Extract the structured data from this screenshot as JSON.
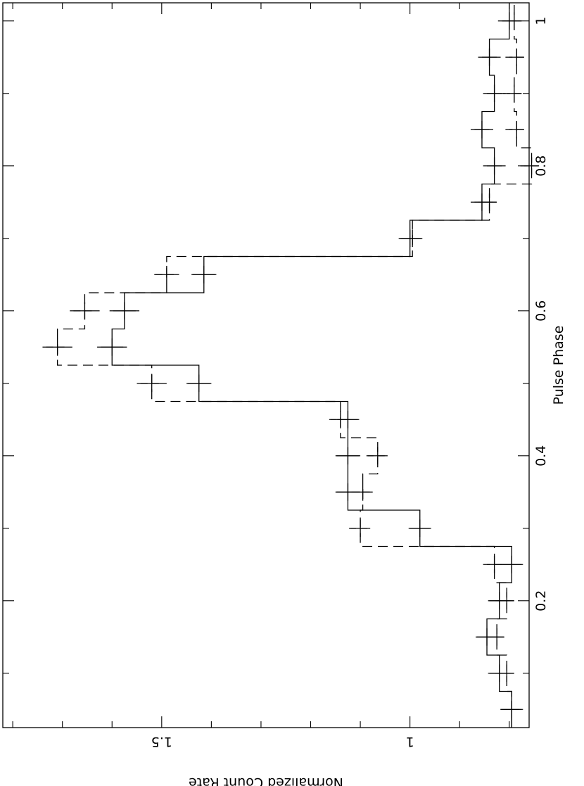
{
  "chart_data": {
    "type": "line",
    "title": "",
    "xlabel": "Pulse Phase",
    "ylabel": "Normalized Count Rate",
    "xlim": [
      0.025,
      1.025
    ],
    "ylim": [
      0.76,
      1.82
    ],
    "x_ticks": [
      {
        "value": 0.2,
        "label": "0.2"
      },
      {
        "value": 0.4,
        "label": "0.4"
      },
      {
        "value": 0.6,
        "label": "0.6"
      },
      {
        "value": 0.8,
        "label": "0.8"
      },
      {
        "value": 1.0,
        "label": "1"
      }
    ],
    "y_ticks": [
      {
        "value": 1.0,
        "label": "1"
      },
      {
        "value": 1.5,
        "label": "1.5"
      }
    ],
    "orientation": "rotated 90 degrees clockwise",
    "grid": false,
    "legend": "none",
    "bin_width": 0.05,
    "x": [
      0.05,
      0.1,
      0.15,
      0.2,
      0.25,
      0.3,
      0.35,
      0.4,
      0.45,
      0.5,
      0.55,
      0.6,
      0.65,
      0.7,
      0.75,
      0.8,
      0.85,
      0.9,
      0.95,
      1.0
    ],
    "series": [
      {
        "style": "solid",
        "values": [
          0.795,
          0.82,
          0.845,
          0.82,
          0.795,
          0.98,
          1.125,
          1.125,
          1.125,
          1.425,
          1.6,
          1.575,
          1.415,
          1.0,
          0.855,
          0.83,
          0.855,
          0.83,
          0.84,
          0.8
        ],
        "errors": [
          0.02,
          0.02,
          0.02,
          0.02,
          0.02,
          0.02,
          0.025,
          0.025,
          0.02,
          0.025,
          0.03,
          0.03,
          0.025,
          0.02,
          0.015,
          0.015,
          0.015,
          0.015,
          0.015,
          0.015
        ]
      },
      {
        "style": "dashed",
        "values": [
          0.795,
          0.805,
          0.825,
          0.805,
          0.83,
          1.1,
          1.095,
          1.065,
          1.14,
          1.52,
          1.71,
          1.655,
          1.49,
          0.995,
          0.84,
          0.755,
          0.785,
          0.79,
          0.785,
          0.79
        ],
        "errors": [
          0.015,
          0.015,
          0.015,
          0.015,
          0.015,
          0.02,
          0.02,
          0.02,
          0.02,
          0.03,
          0.03,
          0.03,
          0.025,
          0.02,
          0.015,
          0.015,
          0.015,
          0.015,
          0.015,
          0.015
        ]
      }
    ]
  }
}
